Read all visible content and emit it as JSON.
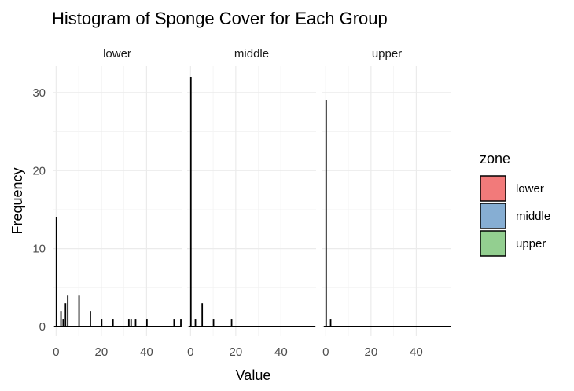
{
  "chart_data": {
    "type": "bar",
    "title": "Histogram of Sponge Cover for Each Group",
    "xlabel": "Value",
    "ylabel": "Frequency",
    "xlim": [
      -1.5,
      55.5
    ],
    "ylim": [
      0,
      32
    ],
    "x_ticks": [
      0,
      20,
      40
    ],
    "y_ticks": [
      0,
      10,
      20,
      30
    ],
    "bin_width": 1,
    "grid": true,
    "facets": [
      {
        "name": "lower",
        "bins": [
          {
            "x": 0,
            "count": 14
          },
          {
            "x": 2,
            "count": 2
          },
          {
            "x": 3,
            "count": 1
          },
          {
            "x": 4,
            "count": 3
          },
          {
            "x": 5,
            "count": 4
          },
          {
            "x": 10,
            "count": 4
          },
          {
            "x": 15,
            "count": 2
          },
          {
            "x": 20,
            "count": 1
          },
          {
            "x": 25,
            "count": 1
          },
          {
            "x": 32,
            "count": 1
          },
          {
            "x": 33,
            "count": 1
          },
          {
            "x": 35,
            "count": 1
          },
          {
            "x": 40,
            "count": 1
          },
          {
            "x": 52,
            "count": 1
          },
          {
            "x": 55,
            "count": 1
          }
        ]
      },
      {
        "name": "middle",
        "bins": [
          {
            "x": 0,
            "count": 32
          },
          {
            "x": 2,
            "count": 1
          },
          {
            "x": 5,
            "count": 3
          },
          {
            "x": 10,
            "count": 1
          },
          {
            "x": 18,
            "count": 1
          }
        ]
      },
      {
        "name": "upper",
        "bins": [
          {
            "x": 0,
            "count": 29
          },
          {
            "x": 2,
            "count": 1
          }
        ]
      }
    ],
    "legend": {
      "title": "zone",
      "placement": "right",
      "entries": [
        {
          "label": "lower",
          "color": "#F27A7A"
        },
        {
          "label": "middle",
          "color": "#86AED3"
        },
        {
          "label": "upper",
          "color": "#93CF90"
        }
      ]
    },
    "colors": {
      "bar_fill": "#000000",
      "baseline": "#000000",
      "grid": "#ebebeb"
    }
  }
}
